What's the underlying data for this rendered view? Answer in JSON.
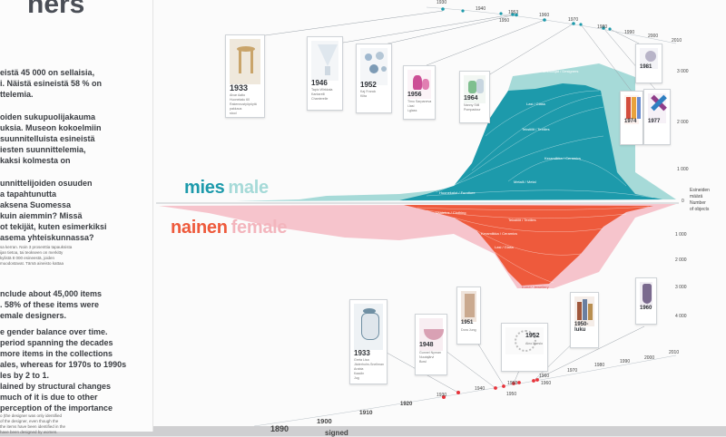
{
  "wall_title_fragment": "ners",
  "panel_text": {
    "finnish_lines": [
      "eistä 45 000 on sellaisia,",
      "i. Näistä esineistä 58 % on",
      "ttelemia.",
      "",
      "oiden sukupuolijakauma",
      "uksia. Museon kokoelmiin",
      "suunnitelluista esineistä",
      "iesten suunnittelemia,",
      "kaksi kolmesta on",
      "",
      "unnittelijoiden osuuden",
      "a tapahtunutta",
      "aksena Suomessa",
      "kuin aiemmin? Missä",
      "ot tekijät, kuten esimerkiksi",
      "asema yhteiskunnassa?"
    ],
    "fine_print": [
      "sa kerran. Noin 3 prosenttia tapauksista",
      "ijan tietoa, tai teokseen on merkitty",
      "kylistä 8 000 esineestä, joiden",
      "muodostavat. Tämä aineisto kattaa"
    ],
    "english_lines": [
      "nclude about 45,000 items",
      ". 58% of these items were",
      "emale designers.",
      "",
      "e gender balance over time.",
      "period spanning the decades",
      "more items in the collections",
      "ales, whereas for 1970s to 1990s",
      "les by 2 to 1.",
      "",
      "lained by structural changes",
      "much of it is due to other",
      "perception of the importance"
    ],
    "english_fine": [
      "o (the designer was only identified",
      "of the designer, even though the",
      "the items have been identified in the",
      "have been designed by women."
    ]
  },
  "legend": {
    "male_fi": "mies",
    "male_en": "male",
    "female_fi": "nainen",
    "female_en": "female"
  },
  "axis": {
    "zero_label": "0",
    "title_lines": [
      "Esineiden",
      "määrä",
      "Number",
      "of objects"
    ],
    "ticks_male": [
      "1 000",
      "2 000",
      "3 000"
    ],
    "ticks_female": [
      "1 000",
      "2 000",
      "3 000",
      "4 000"
    ]
  },
  "timeline_top": {
    "years": [
      "1930",
      "1940",
      "1950",
      "1960",
      "1970",
      "1980",
      "1990",
      "2000",
      "2010"
    ],
    "small_labels": [
      "1953",
      "1958",
      "1974",
      "1977",
      "1981"
    ]
  },
  "timeline_bottom": {
    "years": [
      "1890",
      "1900",
      "1910",
      "1920",
      "1930",
      "1940",
      "1950",
      "1960",
      "1970",
      "1980",
      "1990",
      "2000",
      "2010"
    ],
    "small_labels": [
      "1958",
      "1960"
    ],
    "cut_label": "signed"
  },
  "cards_top": [
    {
      "year": "1933",
      "lines": [
        "Alvar Aalto",
        "Huonekalu 60",
        "Rakennustyöpöytä",
        "pakkaus",
        "stool"
      ],
      "color": "#c9a46a"
    },
    {
      "year": "1946",
      "lines": [
        "Tapio Wirkkala",
        "Kantarelli",
        "Chanterelle",
        "",
        ""
      ],
      "color": "#dfe7ee"
    },
    {
      "year": "1952",
      "lines": [
        "Kaj Franck",
        "Kilta",
        "",
        "",
        ""
      ],
      "color": "#9fb8cf"
    },
    {
      "year": "1956",
      "lines": [
        "Timo Sarpaneva",
        "i-lasi",
        "i-glass",
        "",
        ""
      ],
      "color": "#cc4f96"
    },
    {
      "year": "1964",
      "lines": [
        "Nanny Still",
        "Pompadour",
        "",
        "",
        ""
      ],
      "color": "#7fbf8f"
    },
    {
      "year": "1974",
      "lines": [
        "",
        "",
        ""
      ],
      "color": "#d34d3d"
    },
    {
      "year": "1977",
      "lines": [
        "",
        "",
        ""
      ],
      "color": "#8f3e8a"
    },
    {
      "year": "1981",
      "lines": [
        "",
        ""
      ],
      "color": "#b8b4c8"
    }
  ],
  "cards_bottom": [
    {
      "year": "1933",
      "lines": [
        "Greta Lisa",
        "Jäderholm-Snellman",
        "Arabia",
        "Kaadin",
        "Jug"
      ],
      "color": "#6f8fa3"
    },
    {
      "year": "1948",
      "lines": [
        "Gunnel Nyman",
        "Nuutajärvi",
        "Bowl",
        "",
        ""
      ],
      "color": "#d9a1b4"
    },
    {
      "year": "1951",
      "lines": [
        "Dora Jung",
        "",
        "",
        "",
        ""
      ],
      "color": "#caa98f"
    },
    {
      "year": "1952",
      "lines": [
        "Aino Marsio",
        "",
        "",
        "",
        ""
      ],
      "color": "#d5d5d5"
    },
    {
      "year": "1950-luku",
      "lines": [
        "",
        "",
        "",
        "",
        ""
      ],
      "color": "#a0583c"
    },
    {
      "year": "1960",
      "lines": [
        "",
        "",
        ""
      ],
      "color": "#7a6a8e"
    }
  ],
  "chart_labels": {
    "male": [
      "Muotoilijat / Designers",
      "Lasi / Glass",
      "Tekstiilit / Textiles",
      "Keramiikka / Ceramics",
      "Huonekalut / Furniture",
      "Metalli / Metal"
    ],
    "female": [
      "Tekstiilit / Textiles",
      "Keramiikka / Ceramics",
      "Lasi / Glass",
      "Vaatetus / Clothing",
      "Korut / Jewellery"
    ]
  },
  "colors": {
    "male": "#1d9aab",
    "male_light": "#a6dad8",
    "female": "#ee5a3c",
    "female_light": "#f6c4cc",
    "timeline_dot_top": "#1d9aab",
    "timeline_dot_bottom": "#e8333a"
  }
}
